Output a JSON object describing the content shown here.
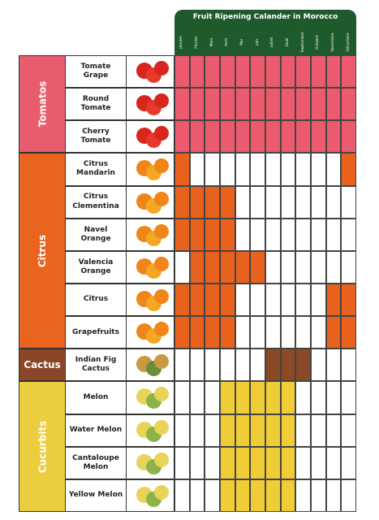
{
  "header": {
    "title": "Fruit Ripening Calander in Morocco",
    "months": [
      "Janvier",
      "Février",
      "Mars",
      "Avril",
      "Mai",
      "Juin",
      "Juillet",
      "Août",
      "Septembre",
      "Octobre",
      "Novembre",
      "Décembre"
    ]
  },
  "groups": [
    {
      "label": "Tomatos",
      "color": "#e85d6d",
      "cell_color": "#ec5b6d",
      "rows": [
        {
          "name": "Tomate Grape",
          "ripe": [
            true,
            true,
            true,
            true,
            true,
            true,
            true,
            true,
            true,
            true,
            true,
            true
          ]
        },
        {
          "name": "Round Tomate",
          "ripe": [
            true,
            true,
            true,
            true,
            true,
            true,
            true,
            true,
            true,
            true,
            true,
            true
          ]
        },
        {
          "name": "Cherry Tomate",
          "ripe": [
            true,
            true,
            true,
            true,
            true,
            true,
            true,
            true,
            true,
            true,
            true,
            true
          ]
        }
      ]
    },
    {
      "label": "Citrus",
      "color": "#e8641f",
      "cell_color": "#e8621e",
      "rows": [
        {
          "name": "Citrus Mandarin",
          "ripe": [
            true,
            false,
            false,
            false,
            false,
            false,
            false,
            false,
            false,
            false,
            false,
            true
          ]
        },
        {
          "name": "Citrus Clementina",
          "ripe": [
            true,
            true,
            true,
            true,
            false,
            false,
            false,
            false,
            false,
            false,
            false,
            false
          ]
        },
        {
          "name": "Navel Orange",
          "ripe": [
            true,
            true,
            true,
            true,
            false,
            false,
            false,
            false,
            false,
            false,
            false,
            false
          ]
        },
        {
          "name": "Valencia Orange",
          "ripe": [
            false,
            true,
            true,
            true,
            true,
            true,
            false,
            false,
            false,
            false,
            false,
            false
          ]
        },
        {
          "name": "Citrus",
          "ripe": [
            true,
            true,
            true,
            true,
            false,
            false,
            false,
            false,
            false,
            false,
            true,
            true
          ]
        },
        {
          "name": "Grapefruits",
          "ripe": [
            true,
            true,
            true,
            true,
            false,
            false,
            false,
            false,
            false,
            false,
            true,
            true
          ]
        }
      ]
    },
    {
      "label": "Cactus",
      "color": "#8a4626",
      "cell_color": "#8b4a26",
      "rows": [
        {
          "name": "Indian Fig Cactus",
          "ripe": [
            false,
            false,
            false,
            false,
            false,
            false,
            true,
            true,
            true,
            false,
            false,
            false
          ]
        }
      ]
    },
    {
      "label": "Cucurbits",
      "color": "#ebce3e",
      "cell_color": "#f0cd37",
      "rows": [
        {
          "name": "Melon",
          "ripe": [
            false,
            false,
            false,
            true,
            true,
            true,
            true,
            true,
            false,
            false,
            false,
            false
          ]
        },
        {
          "name": "Water Melon",
          "ripe": [
            false,
            false,
            false,
            true,
            true,
            true,
            true,
            true,
            false,
            false,
            false,
            false
          ]
        },
        {
          "name": "Cantaloupe Melon",
          "ripe": [
            false,
            false,
            false,
            true,
            true,
            true,
            true,
            true,
            false,
            false,
            false,
            false
          ]
        },
        {
          "name": "Yellow Melon",
          "ripe": [
            false,
            false,
            false,
            true,
            true,
            true,
            true,
            true,
            false,
            false,
            false,
            false
          ]
        }
      ]
    }
  ]
}
